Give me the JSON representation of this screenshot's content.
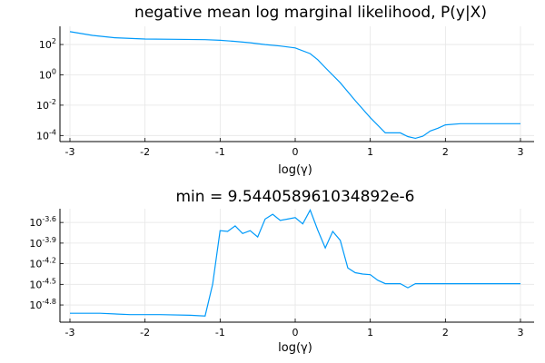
{
  "chart_data": [
    {
      "type": "line",
      "title": "negative mean log marginal likelihood, P(y|X)",
      "xlabel": "log(γ)",
      "ylabel": "",
      "yscale": "log10",
      "xlim": [
        -3,
        3
      ],
      "ylim_log10": [
        -4.4,
        3.2
      ],
      "x_ticks": [
        -3,
        -2,
        -1,
        0,
        1,
        2,
        3
      ],
      "x_tick_labels": [
        "-3",
        "-2",
        "-1",
        "0",
        "1",
        "2",
        "3"
      ],
      "y_ticks_log10": [
        2,
        0,
        -2,
        -4
      ],
      "y_tick_labels": [
        {
          "base": "10",
          "exp": "2"
        },
        {
          "base": "10",
          "exp": "0"
        },
        {
          "base": "10",
          "exp": "-2"
        },
        {
          "base": "10",
          "exp": "-4"
        }
      ],
      "grid": true,
      "legend": false,
      "color": "#009AFA",
      "series": [
        {
          "x": [
            -3.0,
            -2.7,
            -2.4,
            -2.0,
            -1.6,
            -1.2,
            -1.0,
            -0.8,
            -0.6,
            -0.4,
            -0.2,
            0.0,
            0.2,
            0.3,
            0.4,
            0.6,
            0.8,
            1.0,
            1.2,
            1.4,
            1.5,
            1.6,
            1.7,
            1.8,
            1.9,
            2.0,
            2.2,
            2.5,
            3.0
          ],
          "y": [
            700,
            400,
            280,
            230,
            220,
            210,
            190,
            160,
            130,
            100,
            80,
            60,
            25,
            10,
            3,
            0.3,
            0.02,
            0.0015,
            0.00015,
            0.00015,
            8.5e-05,
            6.5e-05,
            9e-05,
            0.0002,
            0.0003,
            0.0005,
            0.0006,
            0.0006,
            0.0006
          ]
        }
      ]
    },
    {
      "type": "line",
      "title": "min = 9.544058961034892e-6",
      "xlabel": "log(γ)",
      "ylabel": "",
      "yscale": "log10",
      "xlim": [
        -3,
        3
      ],
      "ylim_log10": [
        -5.05,
        -3.4
      ],
      "x_ticks": [
        -3,
        -2,
        -1,
        0,
        1,
        2,
        3
      ],
      "x_tick_labels": [
        "-3",
        "-2",
        "-1",
        "0",
        "1",
        "2",
        "3"
      ],
      "y_ticks_log10": [
        -3.6,
        -3.9,
        -4.2,
        -4.5,
        -4.8
      ],
      "y_tick_labels": [
        {
          "base": "10",
          "exp": "-3.6"
        },
        {
          "base": "10",
          "exp": "-3.9"
        },
        {
          "base": "10",
          "exp": "-4.2"
        },
        {
          "base": "10",
          "exp": "-4.5"
        },
        {
          "base": "10",
          "exp": "-4.8"
        }
      ],
      "grid": true,
      "legend": false,
      "color": "#009AFA",
      "series": [
        {
          "x": [
            -3.0,
            -2.6,
            -2.2,
            -1.8,
            -1.4,
            -1.2,
            -1.1,
            -1.0,
            -0.9,
            -0.8,
            -0.7,
            -0.6,
            -0.5,
            -0.4,
            -0.3,
            -0.2,
            -0.1,
            0.0,
            0.1,
            0.2,
            0.3,
            0.4,
            0.5,
            0.6,
            0.7,
            0.8,
            0.9,
            1.0,
            1.1,
            1.2,
            1.3,
            1.4,
            1.5,
            1.6,
            1.7,
            1.8,
            2.0,
            2.2,
            2.5,
            3.0
          ],
          "y_log10": [
            -4.92,
            -4.92,
            -4.94,
            -4.94,
            -4.95,
            -4.96,
            -4.5,
            -3.72,
            -3.73,
            -3.65,
            -3.76,
            -3.72,
            -3.81,
            -3.55,
            -3.48,
            -3.57,
            -3.55,
            -3.53,
            -3.62,
            -3.42,
            -3.71,
            -3.97,
            -3.73,
            -3.86,
            -4.26,
            -4.33,
            -4.35,
            -4.36,
            -4.44,
            -4.49,
            -4.49,
            -4.49,
            -4.55,
            -4.49,
            -4.49,
            -4.49,
            -4.49,
            -4.49,
            -4.49,
            -4.49
          ]
        }
      ]
    }
  ]
}
